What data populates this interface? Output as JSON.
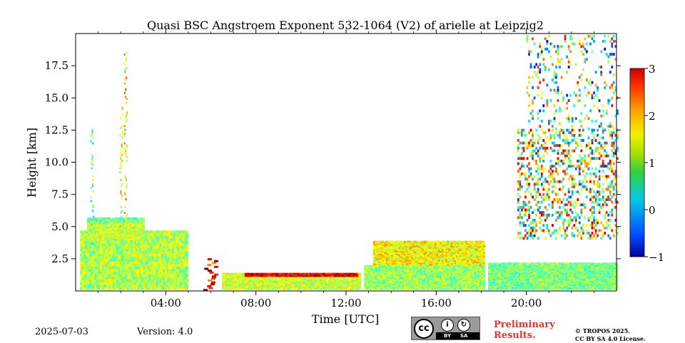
{
  "footer": {
    "date": "2025-07-03",
    "version": "Version: 4.0",
    "license_icons": [
      "cc-icon",
      "by-icon",
      "sa-icon"
    ],
    "license_badge_by": "BY",
    "license_badge_sa": "SA",
    "preliminary_line1": "Preliminary",
    "preliminary_line2": "Results.",
    "copyright_line1": "© TROPOS 2025.",
    "copyright_line2": "CC BY SA 4.0 License."
  },
  "chart_data": {
    "type": "heatmap",
    "title": "Quasi BSC Angstroem Exponent 532-1064 (V2) of arielle at Leipzig2",
    "xlabel": "Time [UTC]",
    "ylabel": "Height [km]",
    "xlim_hours": [
      0,
      24
    ],
    "ylim_km": [
      0,
      20
    ],
    "x_ticks": [
      {
        "value": 4,
        "label": "04:00"
      },
      {
        "value": 8,
        "label": "08:00"
      },
      {
        "value": 12,
        "label": "12:00"
      },
      {
        "value": 16,
        "label": "16:00"
      },
      {
        "value": 20,
        "label": "20:00"
      }
    ],
    "y_ticks": [
      {
        "value": 2.5,
        "label": "2.5"
      },
      {
        "value": 5.0,
        "label": "5.0"
      },
      {
        "value": 7.5,
        "label": "7.5"
      },
      {
        "value": 10.0,
        "label": "10.0"
      },
      {
        "value": 12.5,
        "label": "12.5"
      },
      {
        "value": 15.0,
        "label": "15.0"
      },
      {
        "value": 17.5,
        "label": "17.5"
      }
    ],
    "colorbar": {
      "range": [
        -1,
        3
      ],
      "colormap": "jet",
      "ticks": [
        {
          "value": 3,
          "label": "3"
        },
        {
          "value": 2,
          "label": "2"
        },
        {
          "value": 1,
          "label": "1"
        },
        {
          "value": 0,
          "label": "0"
        },
        {
          "value": -1,
          "label": "−1"
        }
      ]
    },
    "data_gaps_hours": [
      [
        5.0,
        5.2
      ],
      [
        12.6,
        12.8
      ],
      [
        18.1,
        18.3
      ]
    ],
    "regions": [
      {
        "name": "morning-boundary-layer",
        "t": [
          0.2,
          5.0
        ],
        "h": [
          0.1,
          4.6
        ],
        "typical_value": 1.2
      },
      {
        "name": "morning-aerosol-top",
        "t": [
          0.5,
          3.0
        ],
        "h": [
          4.0,
          5.6
        ],
        "typical_value": 0.9
      },
      {
        "name": "midday-residual-layer",
        "t": [
          6.5,
          12.6
        ],
        "h": [
          0.1,
          1.4
        ],
        "typical_value": 1.3
      },
      {
        "name": "midday-layer-top",
        "t": [
          7.5,
          12.5
        ],
        "h": [
          0.9,
          1.4
        ],
        "typical_value": 2.6
      },
      {
        "name": "afternoon-boundary-layer",
        "t": [
          12.8,
          18.1
        ],
        "h": [
          0.1,
          2.0
        ],
        "typical_value": 1.1
      },
      {
        "name": "afternoon-cloud-layer",
        "t": [
          13.2,
          18.1
        ],
        "h": [
          2.0,
          3.9
        ],
        "typical_value": 1.5
      },
      {
        "name": "evening-boundary-layer",
        "t": [
          18.3,
          24.0
        ],
        "h": [
          0.1,
          2.2
        ],
        "typical_value": 1.0
      },
      {
        "name": "evening-elevated-layers",
        "t": [
          19.6,
          24.0
        ],
        "h": [
          4.0,
          12.5
        ],
        "typical_value": 1.3
      },
      {
        "name": "evening-upper-troposphere",
        "t": [
          20.0,
          24.0
        ],
        "h": [
          12.5,
          19.8
        ],
        "typical_value": 1.0
      }
    ],
    "plumes": [
      {
        "name": "cirrus-column-1",
        "t": 0.7,
        "h": [
          3.0,
          12.5
        ],
        "typical_value": 1.0
      },
      {
        "name": "cirrus-column-2",
        "t": 2.0,
        "h": [
          4.5,
          14.5
        ],
        "typical_value": 1.4
      },
      {
        "name": "cirrus-column-3",
        "t": 2.2,
        "h": [
          4.5,
          18.5
        ],
        "typical_value": 1.6
      },
      {
        "name": "convective-plume-6h",
        "t": 5.9,
        "h": [
          0.0,
          2.5
        ],
        "typical_value": 2.6
      }
    ]
  }
}
